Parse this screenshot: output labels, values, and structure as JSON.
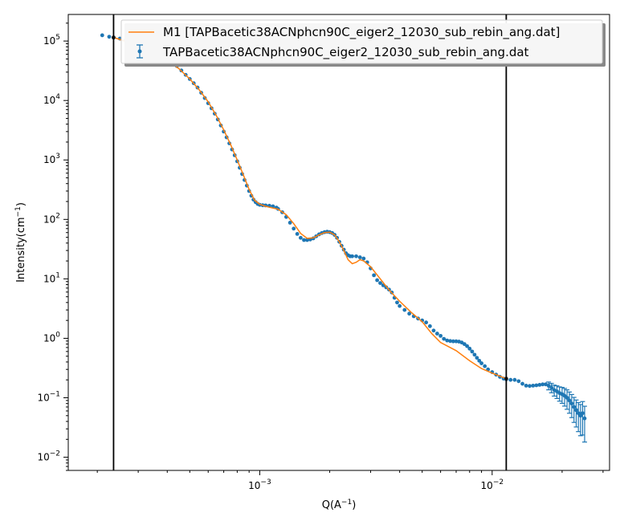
{
  "chart_data": {
    "type": "scatter",
    "xscale": "log",
    "yscale": "log",
    "xlim": [
      0.00015,
      0.032
    ],
    "ylim": [
      0.006,
      280000
    ],
    "xlabel": {
      "base": "Q(A",
      "sup": "−1",
      "tail": ")"
    },
    "ylabel": {
      "base": "Intensity(cm",
      "sup": "−1",
      "tail": ")"
    },
    "xticks": [
      {
        "value": 0.001,
        "base": "10",
        "exp": "−3"
      },
      {
        "value": 0.01,
        "base": "10",
        "exp": "−2"
      }
    ],
    "yticks": [
      {
        "value": 0.01,
        "base": "10",
        "exp": "−2"
      },
      {
        "value": 0.1,
        "base": "10",
        "exp": "−1"
      },
      {
        "value": 1,
        "base": "10",
        "exp": "0"
      },
      {
        "value": 10,
        "base": "10",
        "exp": "1"
      },
      {
        "value": 100,
        "base": "10",
        "exp": "2"
      },
      {
        "value": 1000,
        "base": "10",
        "exp": "3"
      },
      {
        "value": 10000,
        "base": "10",
        "exp": "4"
      },
      {
        "value": 100000,
        "base": "10",
        "exp": "5"
      }
    ],
    "fit_range": [
      0.000235,
      0.0115
    ],
    "legend_position": "top-right",
    "series": [
      {
        "name": "M1 [TAPBacetic38ACNphcn90C_eiger2_12030_sub_rebin_ang.dat]",
        "kind": "line",
        "color": "#ff7f0e",
        "points": [
          [
            0.000235,
            115000
          ],
          [
            0.0003,
            84000
          ],
          [
            0.00035,
            66000
          ],
          [
            0.0004,
            48000
          ],
          [
            0.00045,
            34000
          ],
          [
            0.0005,
            23000
          ],
          [
            0.00055,
            15000
          ],
          [
            0.0006,
            9500
          ],
          [
            0.00065,
            5600
          ],
          [
            0.0007,
            3200
          ],
          [
            0.00075,
            1800
          ],
          [
            0.0008,
            1000
          ],
          [
            0.00085,
            560
          ],
          [
            0.0009,
            320
          ],
          [
            0.00095,
            210
          ],
          [
            0.001,
            180
          ],
          [
            0.00105,
            168
          ],
          [
            0.0011,
            160
          ],
          [
            0.0012,
            148
          ],
          [
            0.0013,
            120
          ],
          [
            0.0014,
            85
          ],
          [
            0.0015,
            58
          ],
          [
            0.0016,
            48
          ],
          [
            0.0017,
            49
          ],
          [
            0.0018,
            55
          ],
          [
            0.0019,
            60
          ],
          [
            0.002,
            61
          ],
          [
            0.0021,
            55
          ],
          [
            0.0022,
            42
          ],
          [
            0.0023,
            30
          ],
          [
            0.0024,
            21
          ],
          [
            0.0025,
            18
          ],
          [
            0.0026,
            19
          ],
          [
            0.0027,
            21
          ],
          [
            0.0028,
            20
          ],
          [
            0.003,
            16
          ],
          [
            0.0033,
            10
          ],
          [
            0.0036,
            6.5
          ],
          [
            0.004,
            4.2
          ],
          [
            0.0045,
            2.7
          ],
          [
            0.005,
            1.9
          ],
          [
            0.0055,
            1.2
          ],
          [
            0.006,
            0.85
          ],
          [
            0.007,
            0.62
          ],
          [
            0.008,
            0.42
          ],
          [
            0.009,
            0.31
          ],
          [
            0.01,
            0.26
          ],
          [
            0.0115,
            0.21
          ]
        ]
      },
      {
        "name": "TAPBacetic38ACNphcn90C_eiger2_12030_sub_rebin_ang.dat",
        "kind": "errorbar",
        "color": "#1f77b4",
        "points": [
          [
            0.00021,
            125000
          ],
          [
            0.000225,
            118000
          ],
          [
            0.000235,
            114000
          ],
          [
            0.00025,
            110000
          ],
          [
            0.000265,
            104000
          ],
          [
            0.00028,
            98000
          ],
          [
            0.0003,
            90000
          ],
          [
            0.00032,
            82000
          ],
          [
            0.00034,
            74000
          ],
          [
            0.00036,
            66000
          ],
          [
            0.00038,
            58000
          ],
          [
            0.0004,
            50000
          ],
          [
            0.00042,
            44000
          ],
          [
            0.00044,
            38000
          ],
          [
            0.00046,
            32000
          ],
          [
            0.00048,
            27000
          ],
          [
            0.0005,
            23000
          ],
          [
            0.00052,
            19500
          ],
          [
            0.00054,
            16500
          ],
          [
            0.00056,
            13500
          ],
          [
            0.00058,
            11000
          ],
          [
            0.0006,
            9000
          ],
          [
            0.00062,
            7400
          ],
          [
            0.00064,
            6000
          ],
          [
            0.00066,
            4800
          ],
          [
            0.00068,
            3800
          ],
          [
            0.0007,
            3000
          ],
          [
            0.00072,
            2400
          ],
          [
            0.00074,
            1900
          ],
          [
            0.00076,
            1500
          ],
          [
            0.00078,
            1200
          ],
          [
            0.0008,
            950
          ],
          [
            0.00082,
            740
          ],
          [
            0.00084,
            580
          ],
          [
            0.00086,
            460
          ],
          [
            0.00088,
            370
          ],
          [
            0.0009,
            300
          ],
          [
            0.00092,
            250
          ],
          [
            0.00094,
            215
          ],
          [
            0.00096,
            195
          ],
          [
            0.00098,
            182
          ],
          [
            0.001,
            176
          ],
          [
            0.00103,
            173
          ],
          [
            0.00106,
            172
          ],
          [
            0.0011,
            170
          ],
          [
            0.00114,
            166
          ],
          [
            0.00118,
            158
          ],
          [
            0.0012,
            150
          ],
          [
            0.00125,
            132
          ],
          [
            0.0013,
            110
          ],
          [
            0.00135,
            88
          ],
          [
            0.0014,
            70
          ],
          [
            0.00145,
            57
          ],
          [
            0.0015,
            49
          ],
          [
            0.00155,
            45
          ],
          [
            0.0016,
            45
          ],
          [
            0.00165,
            46
          ],
          [
            0.0017,
            48
          ],
          [
            0.00175,
            52
          ],
          [
            0.0018,
            56
          ],
          [
            0.00185,
            59
          ],
          [
            0.0019,
            61
          ],
          [
            0.00195,
            62
          ],
          [
            0.002,
            61
          ],
          [
            0.00205,
            59
          ],
          [
            0.0021,
            55
          ],
          [
            0.00215,
            49
          ],
          [
            0.0022,
            42
          ],
          [
            0.00225,
            36
          ],
          [
            0.0023,
            31
          ],
          [
            0.00235,
            27
          ],
          [
            0.0024,
            25
          ],
          [
            0.00245,
            24
          ],
          [
            0.0025,
            24
          ],
          [
            0.0026,
            24
          ],
          [
            0.0027,
            23
          ],
          [
            0.0028,
            22
          ],
          [
            0.0029,
            19
          ],
          [
            0.003,
            15
          ],
          [
            0.0031,
            11.5
          ],
          [
            0.0032,
            9.5
          ],
          [
            0.0033,
            8.5
          ],
          [
            0.0034,
            7.8
          ],
          [
            0.0035,
            7.2
          ],
          [
            0.0036,
            6.6
          ],
          [
            0.0037,
            5.9
          ],
          [
            0.0038,
            4.8
          ],
          [
            0.0039,
            4
          ],
          [
            0.004,
            3.5
          ],
          [
            0.0042,
            3.0
          ],
          [
            0.0044,
            2.6
          ],
          [
            0.0046,
            2.35
          ],
          [
            0.0048,
            2.15
          ],
          [
            0.005,
            2.0
          ],
          [
            0.0052,
            1.85
          ],
          [
            0.0054,
            1.6
          ],
          [
            0.0056,
            1.35
          ],
          [
            0.0058,
            1.2
          ],
          [
            0.006,
            1.1
          ],
          [
            0.0062,
            0.98
          ],
          [
            0.0064,
            0.92
          ],
          [
            0.0066,
            0.9
          ],
          [
            0.0068,
            0.89
          ],
          [
            0.007,
            0.89
          ],
          [
            0.0072,
            0.88
          ],
          [
            0.0074,
            0.85
          ],
          [
            0.0076,
            0.8
          ],
          [
            0.0078,
            0.74
          ],
          [
            0.008,
            0.67
          ],
          [
            0.0082,
            0.6
          ],
          [
            0.0084,
            0.53
          ],
          [
            0.0086,
            0.47
          ],
          [
            0.0088,
            0.42
          ],
          [
            0.009,
            0.38
          ],
          [
            0.0093,
            0.34
          ],
          [
            0.0096,
            0.3
          ],
          [
            0.01,
            0.27
          ],
          [
            0.0104,
            0.245
          ],
          [
            0.0108,
            0.225
          ],
          [
            0.0112,
            0.21
          ],
          [
            0.0115,
            0.205
          ],
          [
            0.012,
            0.2
          ],
          [
            0.0125,
            0.2
          ],
          [
            0.013,
            0.19
          ],
          [
            0.0135,
            0.172
          ],
          [
            0.014,
            0.16
          ],
          [
            0.0145,
            0.158
          ],
          [
            0.015,
            0.16
          ],
          [
            0.0155,
            0.162
          ],
          [
            0.016,
            0.165
          ],
          [
            0.0165,
            0.168
          ],
          [
            0.017,
            0.168
          ],
          [
            0.0175,
            0.16
          ],
          [
            0.018,
            0.148
          ],
          [
            0.0185,
            0.135
          ],
          [
            0.019,
            0.128
          ],
          [
            0.0195,
            0.12
          ],
          [
            0.02,
            0.115
          ],
          [
            0.0205,
            0.108
          ],
          [
            0.021,
            0.1
          ],
          [
            0.0215,
            0.09
          ],
          [
            0.022,
            0.08
          ],
          [
            0.0225,
            0.07
          ],
          [
            0.023,
            0.062
          ],
          [
            0.0235,
            0.055
          ],
          [
            0.024,
            0.05
          ],
          [
            0.0245,
            0.055
          ],
          [
            0.025,
            0.045
          ]
        ]
      }
    ]
  }
}
